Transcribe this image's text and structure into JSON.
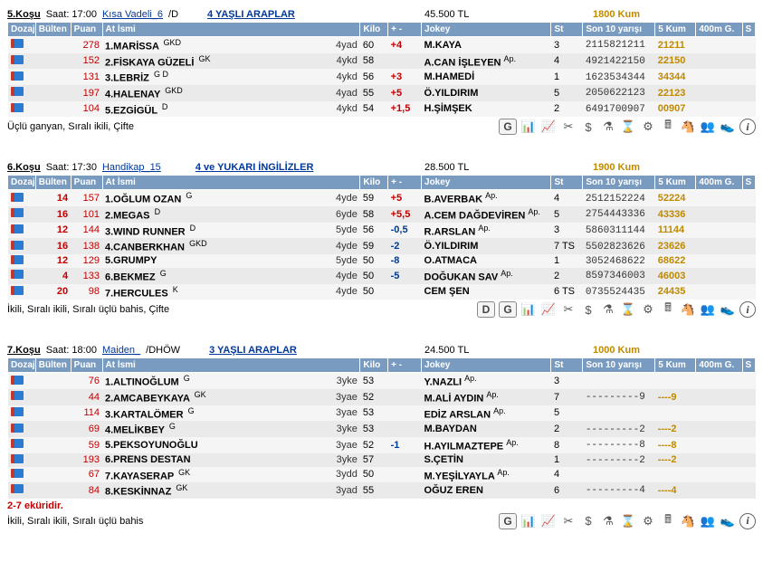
{
  "columns": {
    "doz": "Dozaj",
    "bulten": "Bülten",
    "puan": "Puan",
    "at": "At İsmi",
    "kilo": "Kilo",
    "diff": "+ -",
    "jokey": "Jokey",
    "st": "St",
    "last10": "Son 10 yarışı",
    "kum5": "5 Kum",
    "g400": "400m G.",
    "s": "S"
  },
  "colwidths": {
    "doz": 30,
    "bulten": 38,
    "puan": 34,
    "at": 240,
    "age": 38,
    "kilo": 30,
    "diff": 36,
    "jokey": 140,
    "st": 34,
    "last10": 78,
    "kum5": 44,
    "g400": 50,
    "s": 14
  },
  "races": [
    {
      "id": "5",
      "title": "5.Koşu",
      "time": "Saat: 17:00",
      "type": "Kısa Vadeli_6",
      "type_suffix": "/D",
      "detail": "4 YAŞLI ARAPLAR",
      "prize": "45.500 TL",
      "distance": "1800 Kum",
      "bets": "Üçlü ganyan, Sıralı ikili, Çifte",
      "showD": false,
      "rows": [
        {
          "bulten": "",
          "puan": "278",
          "horse": "1.MARİSSA",
          "sup": "GKD",
          "age": "4yad",
          "kilo": "60",
          "diff": "+4",
          "diffc": "pos",
          "jockey": "M.KAYA",
          "jsup": "",
          "st": "3",
          "last10": "2115821211",
          "kum5": "21211",
          "g400": ""
        },
        {
          "bulten": "",
          "puan": "152",
          "horse": "2.FİSKAYA GÜZELİ",
          "sup": "GK",
          "age": "4ykd",
          "kilo": "58",
          "diff": "",
          "diffc": "",
          "jockey": "A.CAN İŞLEYEN",
          "jsup": "Ap.",
          "st": "4",
          "last10": "4921422150",
          "kum5": "22150",
          "g400": ""
        },
        {
          "bulten": "",
          "puan": "131",
          "horse": "3.LEBRİZ",
          "sup": "G D",
          "age": "4ykd",
          "kilo": "56",
          "diff": "+3",
          "diffc": "pos",
          "jockey": "M.HAMEDİ",
          "jsup": "",
          "st": "1",
          "last10": "1623534344",
          "kum5": "34344",
          "g400": ""
        },
        {
          "bulten": "",
          "puan": "197",
          "horse": "4.HALENAY",
          "sup": "GKD",
          "age": "4yad",
          "kilo": "55",
          "diff": "+5",
          "diffc": "pos",
          "jockey": "Ö.YILDIRIM",
          "jsup": "",
          "st": "5",
          "last10": "2050622123",
          "kum5": "22123",
          "g400": ""
        },
        {
          "bulten": "",
          "puan": "104",
          "horse": "5.EZGİGÜL",
          "sup": "D",
          "age": "4ykd",
          "kilo": "54",
          "diff": "+1,5",
          "diffc": "pos",
          "jockey": "H.ŞİMŞEK",
          "jsup": "",
          "st": "2",
          "last10": "6491700907",
          "kum5": "00907",
          "g400": ""
        }
      ]
    },
    {
      "id": "6",
      "title": "6.Koşu",
      "time": "Saat: 17:30",
      "type": "Handikap_15",
      "type_suffix": "",
      "detail": "4 ve YUKARI İNGİLİZLER",
      "prize": "28.500 TL",
      "distance": "1900 Kum",
      "bets": "İkili, Sıralı ikili, Sıralı üçlü bahis, Çifte",
      "showD": true,
      "rows": [
        {
          "bulten": "14",
          "puan": "157",
          "horse": "1.OĞLUM OZAN",
          "sup": "G",
          "age": "4yde",
          "kilo": "59",
          "diff": "+5",
          "diffc": "pos",
          "jockey": "B.AVERBAK",
          "jsup": "Ap.",
          "st": "4",
          "last10": "2512152224",
          "kum5": "52224",
          "g400": ""
        },
        {
          "bulten": "16",
          "puan": "101",
          "horse": "2.MEGAS",
          "sup": "D",
          "age": "6yde",
          "kilo": "58",
          "diff": "+5,5",
          "diffc": "pos",
          "jockey": "A.CEM DAĞDEVİREN",
          "jsup": "Ap.",
          "st": "5",
          "last10": "2754443336",
          "kum5": "43336",
          "g400": ""
        },
        {
          "bulten": "12",
          "puan": "144",
          "horse": "3.WIND RUNNER",
          "sup": "D",
          "age": "5yde",
          "kilo": "56",
          "diff": "-0,5",
          "diffc": "neg",
          "jockey": "R.ARSLAN",
          "jsup": "Ap.",
          "st": "3",
          "last10": "5860311144",
          "kum5": "11144",
          "g400": ""
        },
        {
          "bulten": "16",
          "puan": "138",
          "horse": "4.CANBERKHAN",
          "sup": "GKD",
          "age": "4yde",
          "kilo": "59",
          "diff": "-2",
          "diffc": "neg",
          "jockey": "Ö.YILDIRIM",
          "jsup": "",
          "st": "7 TS",
          "last10": "5502823626",
          "kum5": "23626",
          "g400": ""
        },
        {
          "bulten": "12",
          "puan": "129",
          "horse": "5.GRUMPY",
          "sup": "",
          "age": "5yde",
          "kilo": "50",
          "diff": "-8",
          "diffc": "neg",
          "jockey": "O.ATMACA",
          "jsup": "",
          "st": "1",
          "last10": "3052468622",
          "kum5": "68622",
          "g400": ""
        },
        {
          "bulten": "4",
          "puan": "133",
          "horse": "6.BEKMEZ",
          "sup": "G",
          "age": "4yde",
          "kilo": "50",
          "diff": "-5",
          "diffc": "neg",
          "jockey": "DOĞUKAN SAV",
          "jsup": "Ap.",
          "st": "2",
          "last10": "8597346003",
          "kum5": "46003",
          "g400": ""
        },
        {
          "bulten": "20",
          "puan": "98",
          "horse": "7.HERCULES",
          "sup": "K",
          "age": "4yde",
          "kilo": "50",
          "diff": "",
          "diffc": "",
          "jockey": "CEM ŞEN",
          "jsup": "",
          "st": "6 TS",
          "last10": "0735524435",
          "kum5": "24435",
          "g400": ""
        }
      ]
    },
    {
      "id": "7",
      "title": "7.Koşu",
      "time": "Saat: 18:00",
      "type": "Maiden_",
      "type_suffix": "/DHÖW",
      "detail": "3 YAŞLI ARAPLAR",
      "prize": "24.500 TL",
      "distance": "1000 Kum",
      "bets": "İkili, Sıralı ikili, Sıralı üçlü bahis",
      "showD": false,
      "footnote": "2-7 eküridir.",
      "rows": [
        {
          "bulten": "",
          "puan": "76",
          "horse": "1.ALTINOĞLUM",
          "sup": "G",
          "age": "3yke",
          "kilo": "53",
          "diff": "",
          "diffc": "",
          "jockey": "Y.NAZLI",
          "jsup": "Ap.",
          "st": "3",
          "last10": "",
          "kum5": "",
          "g400": ""
        },
        {
          "bulten": "",
          "puan": "44",
          "horse": "2.AMCABEYKAYA",
          "sup": "GK",
          "age": "3yae",
          "kilo": "52",
          "diff": "",
          "diffc": "",
          "jockey": "M.ALİ AYDIN",
          "jsup": "Ap.",
          "st": "7",
          "last10": "---------9",
          "kum5": "----9",
          "g400": "",
          "dash": true
        },
        {
          "bulten": "",
          "puan": "114",
          "horse": "3.KARTALÖMER",
          "sup": "G",
          "age": "3yae",
          "kilo": "53",
          "diff": "",
          "diffc": "",
          "jockey": "EDİZ ARSLAN",
          "jsup": "Ap.",
          "st": "5",
          "last10": "",
          "kum5": "",
          "g400": ""
        },
        {
          "bulten": "",
          "puan": "69",
          "horse": "4.MELİKBEY",
          "sup": "G",
          "age": "3yke",
          "kilo": "53",
          "diff": "",
          "diffc": "",
          "jockey": "M.BAYDAN",
          "jsup": "",
          "st": "2",
          "last10": "---------2",
          "kum5": "----2",
          "g400": "",
          "dash": true
        },
        {
          "bulten": "",
          "puan": "59",
          "horse": "5.PEKSOYUNOĞLU",
          "sup": "",
          "age": "3yae",
          "kilo": "52",
          "diff": "-1",
          "diffc": "neg",
          "jockey": "H.AYILMAZTEPE",
          "jsup": "Ap.",
          "st": "8",
          "last10": "---------8",
          "kum5": "----8",
          "g400": "",
          "dash": true
        },
        {
          "bulten": "",
          "puan": "193",
          "horse": "6.PRENS DESTAN",
          "sup": "",
          "age": "3yke",
          "kilo": "57",
          "diff": "",
          "diffc": "",
          "jockey": "S.ÇETİN",
          "jsup": "",
          "st": "1",
          "last10": "---------2",
          "kum5": "----2",
          "g400": "",
          "dash": true
        },
        {
          "bulten": "",
          "puan": "67",
          "horse": "7.KAYASERAP",
          "sup": "GK",
          "age": "3ydd",
          "kilo": "50",
          "diff": "",
          "diffc": "",
          "jockey": "M.YEŞİLYAYLA",
          "jsup": "Ap.",
          "st": "4",
          "last10": "",
          "kum5": "",
          "g400": ""
        },
        {
          "bulten": "",
          "puan": "84",
          "horse": "8.KESKİNNAZ",
          "sup": "GK",
          "age": "3yad",
          "kilo": "55",
          "diff": "",
          "diffc": "",
          "jockey": "OĞUZ EREN",
          "jsup": "",
          "st": "6",
          "last10": "---------4",
          "kum5": "----4",
          "g400": "",
          "dash": true
        }
      ]
    }
  ],
  "iconbar": [
    "📊",
    "📈",
    "✂",
    "$",
    "⚗",
    "⌛",
    "⚙",
    "🖩",
    "🐴",
    "👥",
    "👟"
  ]
}
